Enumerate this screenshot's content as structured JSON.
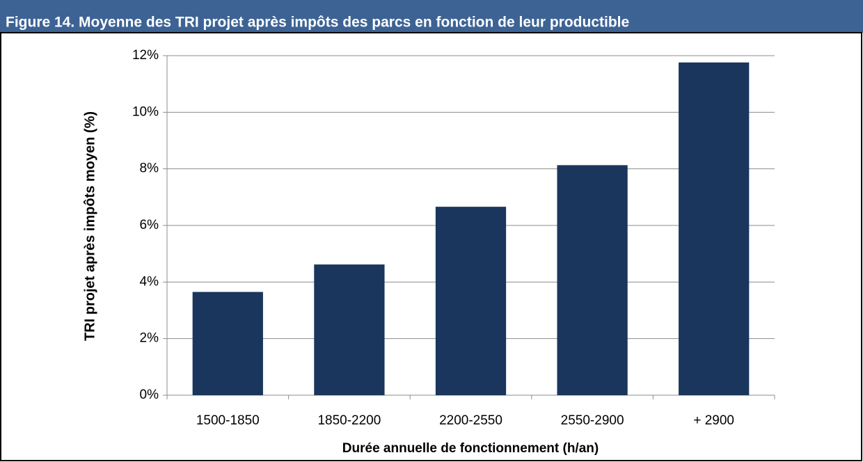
{
  "chart_data": {
    "type": "bar",
    "title": "Figure 14. Moyenne des TRI projet après impôts des parcs en fonction de leur productible",
    "x_label": "Durée annuelle de fonctionnement (h/an)",
    "y_label": "TRI projet après impôts moyen (%)",
    "categories": [
      "1500-1850",
      "1850-2200",
      "2200-2550",
      "2550-2900",
      "+ 2900"
    ],
    "values": [
      3.65,
      4.62,
      6.66,
      8.13,
      11.76
    ],
    "color": "#1b365d",
    "ylim": [
      0,
      12
    ],
    "yticks": [
      {
        "value": 0,
        "label": "0%"
      },
      {
        "value": 2,
        "label": "2%"
      },
      {
        "value": 4,
        "label": "4%"
      },
      {
        "value": 6,
        "label": "6%"
      },
      {
        "value": 8,
        "label": "8%"
      },
      {
        "value": 10,
        "label": "10%"
      },
      {
        "value": 12,
        "label": "12%"
      }
    ],
    "grid": true
  }
}
